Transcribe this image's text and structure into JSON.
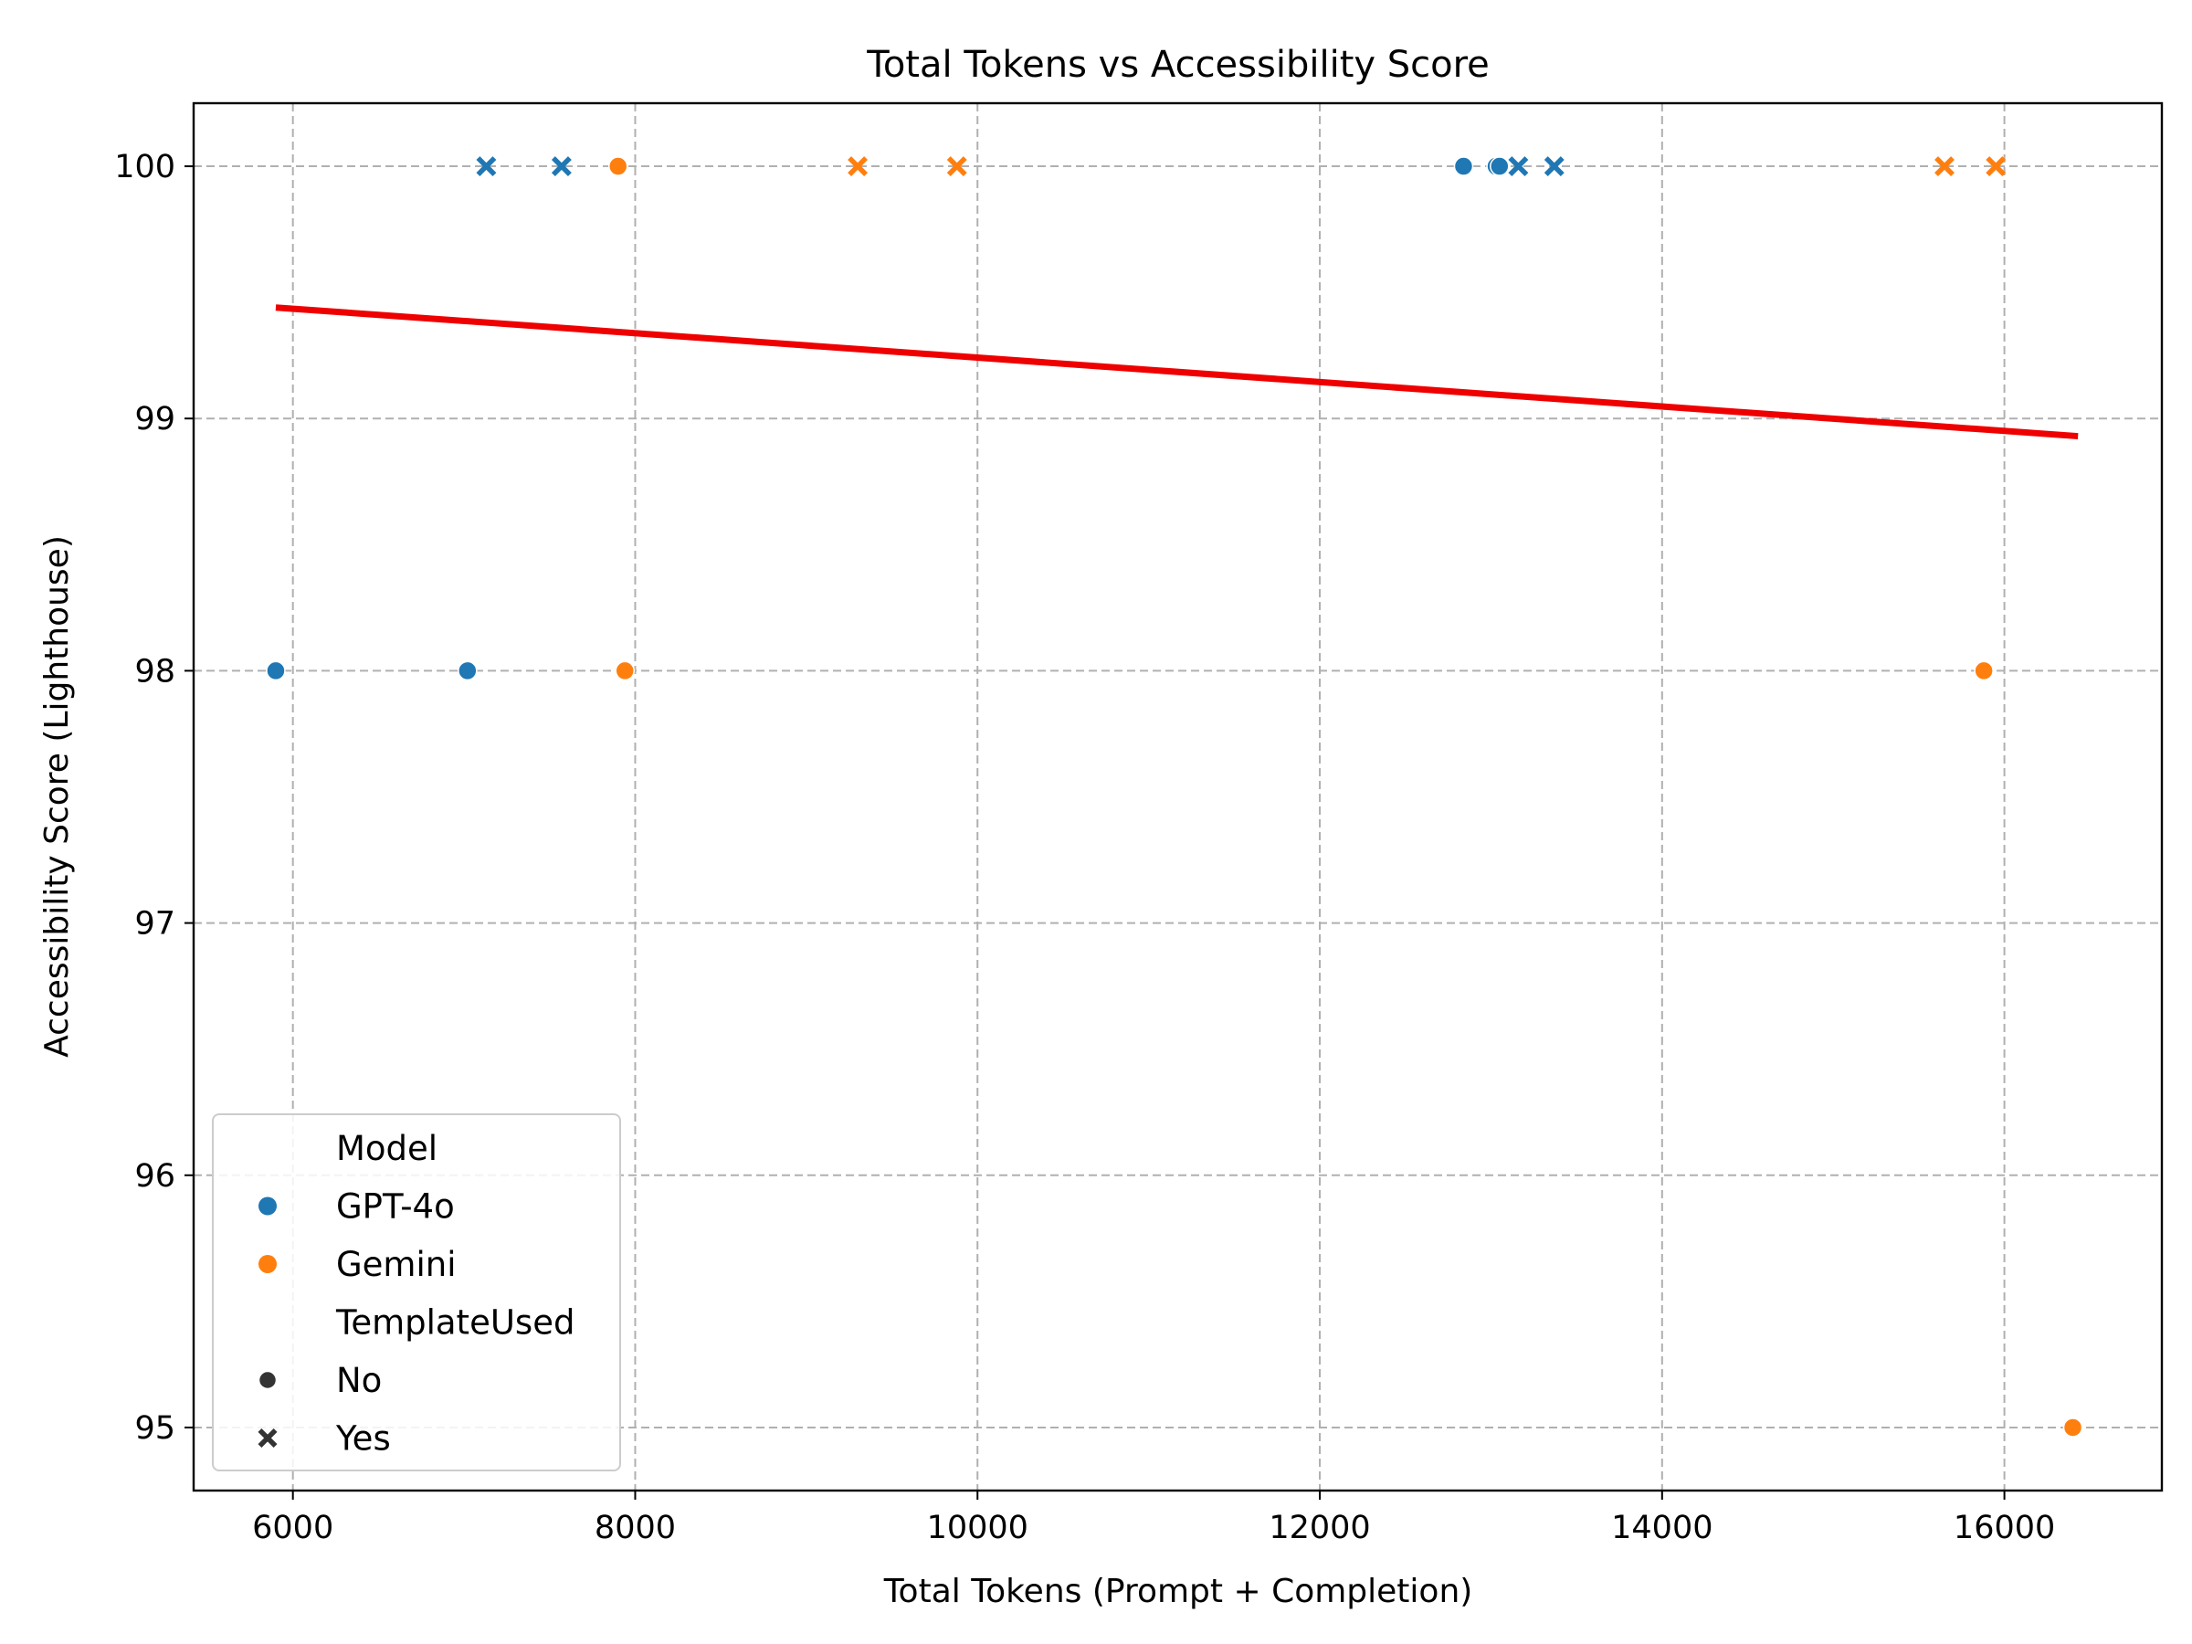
{
  "chart_data": {
    "type": "scatter",
    "title": "Total Tokens vs Accessibility Score",
    "xlabel": "Total Tokens (Prompt + Completion)",
    "ylabel": "Accessibility Score (Lighthouse)",
    "xlim": [
      5420,
      16920
    ],
    "ylim": [
      94.75,
      100.25
    ],
    "xticks": [
      "6000",
      "8000",
      "10000",
      "12000",
      "14000",
      "16000"
    ],
    "yticks": [
      "95",
      "96",
      "97",
      "98",
      "99",
      "100"
    ],
    "grid": true,
    "legend": {
      "placement": "lower-left",
      "entries": [
        {
          "label": "Model",
          "kind": "header"
        },
        {
          "label": "GPT-4o",
          "kind": "color",
          "color": "#1f77b4"
        },
        {
          "label": "Gemini",
          "kind": "color",
          "color": "#ff7f0e"
        },
        {
          "label": "TemplateUsed",
          "kind": "header"
        },
        {
          "label": "No",
          "kind": "marker",
          "marker": "circle",
          "color": "#333333"
        },
        {
          "label": "Yes",
          "kind": "marker",
          "marker": "x",
          "color": "#333333"
        }
      ]
    },
    "series": [
      {
        "name": "GPT-4o",
        "marker": "circle",
        "color": "#1f77b4",
        "points": [
          [
            5900,
            98
          ],
          [
            7020,
            98
          ],
          [
            12840,
            100
          ],
          [
            13030,
            100
          ],
          [
            13050,
            100
          ]
        ]
      },
      {
        "name": "GPT-4o",
        "marker": "x",
        "color": "#1f77b4",
        "points": [
          [
            7130,
            100
          ],
          [
            7570,
            100
          ],
          [
            13160,
            100
          ],
          [
            13370,
            100
          ]
        ]
      },
      {
        "name": "Gemini",
        "marker": "circle",
        "color": "#ff7f0e",
        "points": [
          [
            7900,
            100
          ],
          [
            7940,
            98
          ],
          [
            15880,
            98
          ],
          [
            16400,
            95
          ]
        ]
      },
      {
        "name": "Gemini",
        "marker": "x",
        "color": "#ff7f0e",
        "points": [
          [
            9300,
            100
          ],
          [
            9880,
            100
          ],
          [
            15650,
            100
          ],
          [
            15950,
            100
          ]
        ]
      }
    ],
    "trendline": {
      "color": "#ee0000",
      "points": [
        [
          5900,
          99.44
        ],
        [
          16430,
          98.93
        ]
      ]
    }
  }
}
